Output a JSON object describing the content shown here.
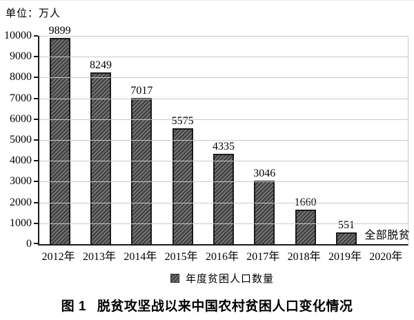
{
  "unit_label": "单位：万人",
  "legend_label": "年度贫困人口数量",
  "caption_prefix": "图 1",
  "caption_text": "脱贫攻坚战以来中国农村贫困人口变化情况",
  "colors": {
    "axis": "#1a1a1a",
    "gridline": "#c9c9c9",
    "bar_fill_light": "#757575",
    "bar_fill_dark": "#3d3d3d",
    "bar_border": "#1a1a1a",
    "text": "#000000"
  },
  "chart_data": {
    "type": "bar",
    "title": "图 1 脱贫攻坚战以来中国农村贫困人口变化情况",
    "unit": "万人",
    "categories": [
      "2012年",
      "2013年",
      "2014年",
      "2015年",
      "2016年",
      "2017年",
      "2018年",
      "2019年",
      "2020年"
    ],
    "values": [
      9899,
      8249,
      7017,
      5575,
      4335,
      3046,
      1660,
      551,
      null
    ],
    "bar_value_labels": [
      "9899",
      "8249",
      "7017",
      "5575",
      "4335",
      "3046",
      "1660",
      "551"
    ],
    "final_annotation": "全部脱贫",
    "legend": [
      "年度贫困人口数量"
    ],
    "legend_position": "bottom",
    "xlabel": "",
    "ylabel": "单位：万人",
    "ylim": [
      0,
      10000
    ],
    "y_ticks": [
      0,
      1000,
      2000,
      3000,
      4000,
      5000,
      6000,
      7000,
      8000,
      9000,
      10000
    ],
    "grid": true
  }
}
